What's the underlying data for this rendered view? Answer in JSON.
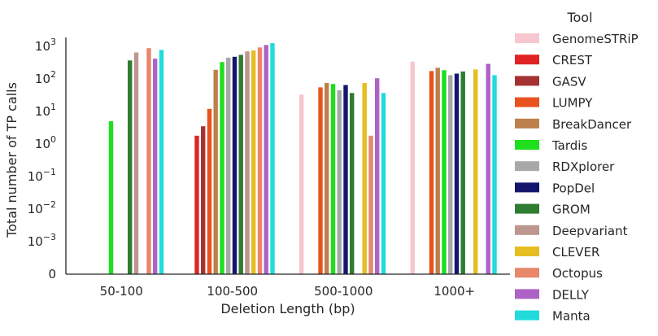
{
  "chart_data": {
    "type": "bar",
    "xlabel": "Deletion Length (bp)",
    "ylabel": "Total number of TP calls",
    "yscale": "symlog",
    "ylim": [
      0,
      1500
    ],
    "yticks": [
      {
        "value": 0,
        "base": "0",
        "exp": ""
      },
      {
        "value": 0.001,
        "base": "10",
        "exp": "−3"
      },
      {
        "value": 0.01,
        "base": "10",
        "exp": "−2"
      },
      {
        "value": 0.1,
        "base": "10",
        "exp": "−1"
      },
      {
        "value": 1,
        "base": "10",
        "exp": "0"
      },
      {
        "value": 10,
        "base": "10",
        "exp": "1"
      },
      {
        "value": 100,
        "base": "10",
        "exp": "2"
      },
      {
        "value": 1000,
        "base": "10",
        "exp": "3"
      }
    ],
    "categories": [
      "50-100",
      "100-500",
      "500-1000",
      "1000+"
    ],
    "legend_title": "Tool",
    "legend_position": "right",
    "series": [
      {
        "name": "GenomeSTRiP",
        "color": "#f7c6cf",
        "values": [
          0,
          0,
          33,
          340
        ]
      },
      {
        "name": "CREST",
        "color": "#e02424",
        "values": [
          0,
          1.8,
          0,
          0
        ]
      },
      {
        "name": "GASV",
        "color": "#a53232",
        "values": [
          0,
          3.5,
          0,
          0
        ]
      },
      {
        "name": "LUMPY",
        "color": "#e8521e",
        "values": [
          0,
          12,
          55,
          175
        ]
      },
      {
        "name": "BreakDancer",
        "color": "#bd804a",
        "values": [
          0,
          190,
          75,
          220
        ]
      },
      {
        "name": "Tardis",
        "color": "#1ede1e",
        "values": [
          5,
          330,
          70,
          185
        ]
      },
      {
        "name": "RDXplorer",
        "color": "#a8a8a8",
        "values": [
          0,
          450,
          45,
          130
        ]
      },
      {
        "name": "PopDel",
        "color": "#14166e",
        "values": [
          0,
          480,
          65,
          145
        ]
      },
      {
        "name": "GROM",
        "color": "#2e7d32",
        "values": [
          370,
          550,
          37,
          170
        ]
      },
      {
        "name": "Deepvariant",
        "color": "#bc968f",
        "values": [
          650,
          700,
          0,
          0
        ]
      },
      {
        "name": "CLEVER",
        "color": "#e6be22",
        "values": [
          0,
          750,
          75,
          195
        ]
      },
      {
        "name": "Octopus",
        "color": "#e8876a",
        "values": [
          880,
          930,
          1.8,
          0
        ]
      },
      {
        "name": "DELLY",
        "color": "#ad62c5",
        "values": [
          420,
          1100,
          105,
          290
        ]
      },
      {
        "name": "Manta",
        "color": "#22dcdc",
        "values": [
          780,
          1250,
          37,
          130
        ]
      }
    ]
  }
}
